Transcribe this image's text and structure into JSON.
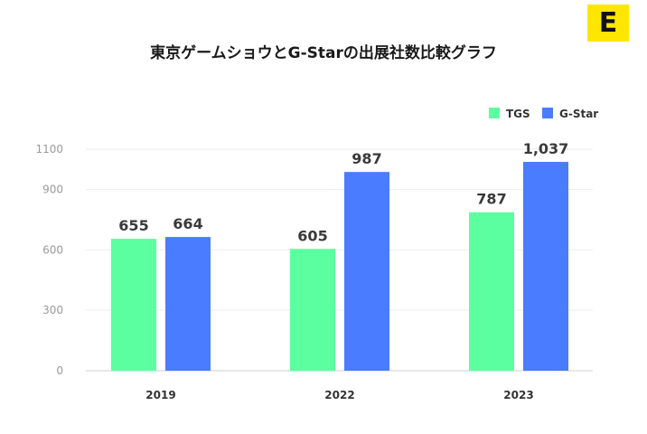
{
  "logo": {
    "letter": "E",
    "color": "#ffe600"
  },
  "chart_data": {
    "type": "bar",
    "title": "東京ゲームショウとG-Starの出展社数比較グラフ",
    "xlabel": "",
    "ylabel": "",
    "categories": [
      "2019",
      "2022",
      "2023"
    ],
    "series": [
      {
        "name": "TGS",
        "color": "#5cffa0",
        "values": [
          655,
          605,
          787
        ],
        "labels": [
          "655",
          "605",
          "787"
        ]
      },
      {
        "name": "G-Star",
        "color": "#4a7cff",
        "values": [
          664,
          987,
          1037
        ],
        "labels": [
          "664",
          "987",
          "1,037"
        ]
      }
    ],
    "ylim": [
      0,
      1100
    ],
    "yticks": [
      0,
      300,
      600,
      900,
      1100
    ],
    "grid": true,
    "legend": "top-right"
  }
}
